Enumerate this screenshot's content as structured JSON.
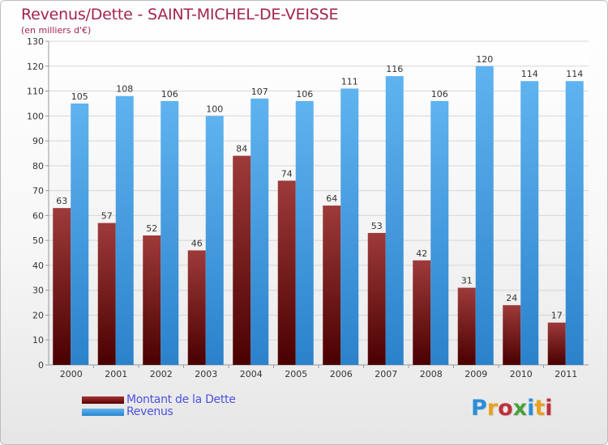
{
  "title": "Revenus/Dette - SAINT-MICHEL-DE-VEISSE",
  "subtitle": "(en milliers d'€)",
  "chart_data": {
    "type": "bar",
    "title": "Revenus/Dette - SAINT-MICHEL-DE-VEISSE",
    "subtitle": "(en milliers d'€)",
    "categories": [
      "2000",
      "2001",
      "2002",
      "2003",
      "2004",
      "2005",
      "2006",
      "2007",
      "2008",
      "2009",
      "2010",
      "2011"
    ],
    "series": [
      {
        "name": "Montant de la Dette",
        "values": [
          63,
          57,
          52,
          46,
          84,
          74,
          64,
          53,
          42,
          31,
          24,
          17
        ],
        "color": "#7a1414"
      },
      {
        "name": "Revenus",
        "values": [
          105,
          108,
          106,
          100,
          107,
          106,
          111,
          116,
          106,
          120,
          114,
          114
        ],
        "color": "#4aa3e8"
      }
    ],
    "ylim": [
      0,
      130
    ],
    "yticks": [
      0,
      10,
      20,
      30,
      40,
      50,
      60,
      70,
      80,
      90,
      100,
      110,
      120,
      130
    ],
    "grid": true,
    "legend": "bottom-left"
  },
  "legend": {
    "items": [
      {
        "label": "Montant de la Dette",
        "color": "#6b0a0a"
      },
      {
        "label": "Revenus",
        "color": "#4aa3e8"
      }
    ]
  },
  "logo": {
    "text": "Proxiti",
    "letter_colors": [
      "#2a8fd8",
      "#e8a21c",
      "#c0303a",
      "#4aa03c",
      "#2a8fd8",
      "#e8a21c",
      "#c0303a"
    ]
  },
  "colors": {
    "title": "#a3234f",
    "legend_text": "#4d52dd",
    "axis_text": "#333333"
  }
}
